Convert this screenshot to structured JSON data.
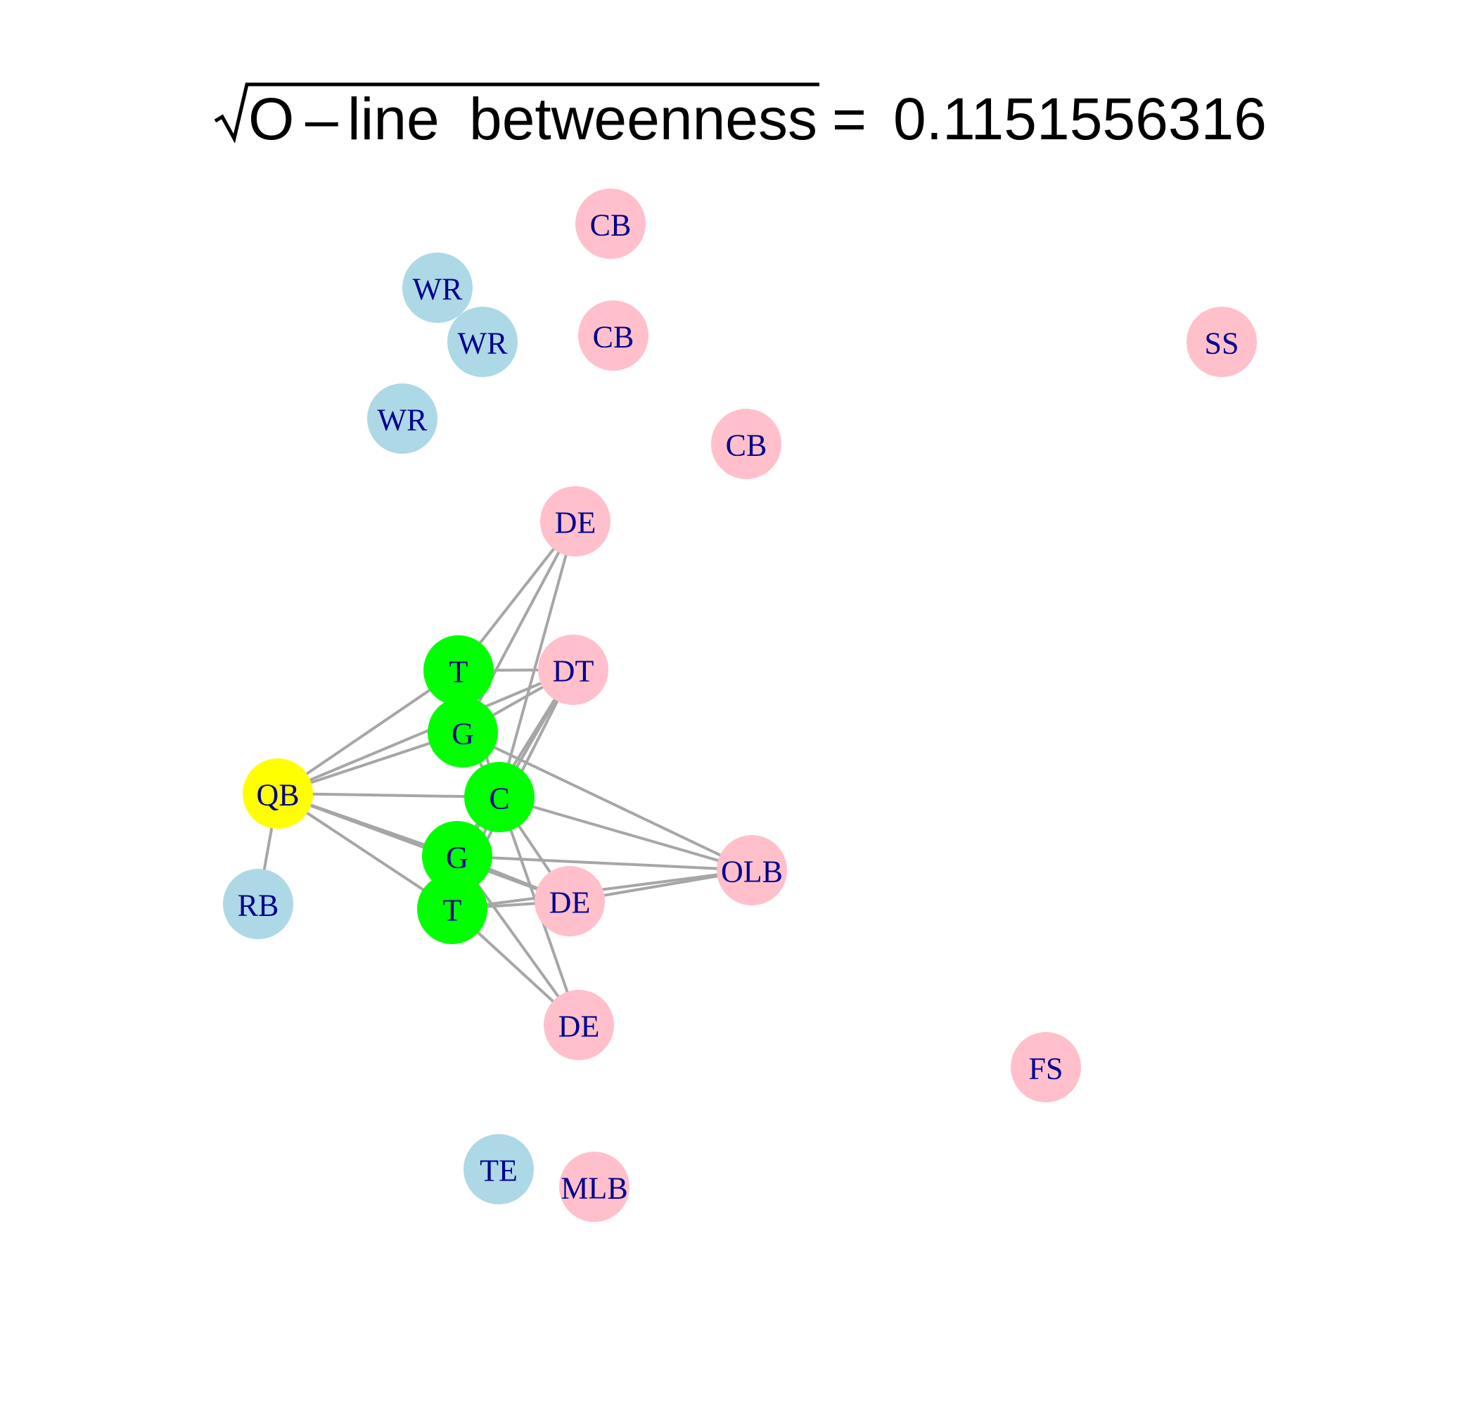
{
  "title": {
    "radicand": "O",
    "minus": "–",
    "word_line": "line",
    "word_betweenness": "betweenness",
    "equals": "=",
    "value": "0.1151556316"
  },
  "colors": {
    "offense_skill": "#add8e6",
    "defense": "#ffc0cb",
    "offensive_line": "#00ff00",
    "quarterback": "#ffff00",
    "edge": "#a6a6a6",
    "label": "#00008b"
  },
  "nodes": [
    {
      "id": "cb1",
      "label": "CB",
      "group": "defense"
    },
    {
      "id": "wr1",
      "label": "WR",
      "group": "offense_skill"
    },
    {
      "id": "wr2",
      "label": "WR",
      "group": "offense_skill"
    },
    {
      "id": "cb2",
      "label": "CB",
      "group": "defense"
    },
    {
      "id": "ss",
      "label": "SS",
      "group": "defense"
    },
    {
      "id": "wr3",
      "label": "WR",
      "group": "offense_skill"
    },
    {
      "id": "cb3",
      "label": "CB",
      "group": "defense"
    },
    {
      "id": "de1",
      "label": "DE",
      "group": "defense"
    },
    {
      "id": "t1",
      "label": "T",
      "group": "offensive_line"
    },
    {
      "id": "dt",
      "label": "DT",
      "group": "defense"
    },
    {
      "id": "g1",
      "label": "G",
      "group": "offensive_line"
    },
    {
      "id": "qb",
      "label": "QB",
      "group": "quarterback"
    },
    {
      "id": "c",
      "label": "C",
      "group": "offensive_line"
    },
    {
      "id": "olb",
      "label": "OLB",
      "group": "defense"
    },
    {
      "id": "g2",
      "label": "G",
      "group": "offensive_line"
    },
    {
      "id": "rb",
      "label": "RB",
      "group": "offense_skill"
    },
    {
      "id": "de2",
      "label": "DE",
      "group": "defense"
    },
    {
      "id": "t2",
      "label": "T",
      "group": "offensive_line"
    },
    {
      "id": "de3",
      "label": "DE",
      "group": "defense"
    },
    {
      "id": "fs",
      "label": "FS",
      "group": "defense"
    },
    {
      "id": "te",
      "label": "TE",
      "group": "offense_skill"
    },
    {
      "id": "mlb",
      "label": "MLB",
      "group": "defense"
    }
  ],
  "edges": [
    [
      "qb",
      "t1"
    ],
    [
      "qb",
      "g1"
    ],
    [
      "qb",
      "c"
    ],
    [
      "qb",
      "g2"
    ],
    [
      "qb",
      "t2"
    ],
    [
      "qb",
      "rb"
    ],
    [
      "qb",
      "dt"
    ],
    [
      "qb",
      "de2"
    ],
    [
      "de1",
      "t1"
    ],
    [
      "de1",
      "g1"
    ],
    [
      "de1",
      "c"
    ],
    [
      "dt",
      "t1"
    ],
    [
      "dt",
      "g1"
    ],
    [
      "dt",
      "c"
    ],
    [
      "dt",
      "g2"
    ],
    [
      "dt",
      "t2"
    ],
    [
      "olb",
      "g1"
    ],
    [
      "olb",
      "c"
    ],
    [
      "olb",
      "g2"
    ],
    [
      "olb",
      "t2"
    ],
    [
      "olb",
      "de2"
    ],
    [
      "de2",
      "c"
    ],
    [
      "de2",
      "g2"
    ],
    [
      "de2",
      "t2"
    ],
    [
      "de3",
      "c"
    ],
    [
      "de3",
      "g2"
    ],
    [
      "de3",
      "t2"
    ],
    [
      "t1",
      "c"
    ],
    [
      "g1",
      "c"
    ],
    [
      "g2",
      "c"
    ],
    [
      "t2",
      "c"
    ]
  ]
}
